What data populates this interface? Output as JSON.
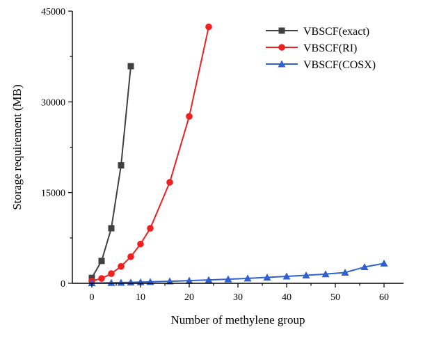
{
  "chart_data": {
    "type": "line",
    "title": "",
    "xlabel": "Number of methylene group",
    "ylabel": "Storage requirement (MB)",
    "xlim": [
      -4,
      64
    ],
    "ylim": [
      0,
      45000
    ],
    "xticks": [
      0,
      10,
      20,
      30,
      40,
      50,
      60
    ],
    "yticks": [
      0,
      15000,
      30000,
      45000
    ],
    "grid": false,
    "legend_position": "top-right",
    "series": [
      {
        "name": "VBSCF(exact)",
        "color": "#404040",
        "marker": "square",
        "x": [
          0,
          2,
          4,
          6,
          8
        ],
        "y": [
          900,
          3700,
          9100,
          19500,
          35900
        ]
      },
      {
        "name": "VBSCF(RI)",
        "color": "#ee2020",
        "marker": "circle",
        "x": [
          0,
          2,
          4,
          6,
          8,
          10,
          12,
          16,
          20,
          24
        ],
        "y": [
          400,
          800,
          1600,
          2800,
          4400,
          6500,
          9100,
          16700,
          27600,
          42400
        ]
      },
      {
        "name": "VBSCF(COSX)",
        "color": "#2f5fd0",
        "marker": "triangle",
        "x": [
          0,
          4,
          6,
          8,
          10,
          12,
          16,
          20,
          24,
          28,
          32,
          36,
          40,
          44,
          48,
          52,
          56,
          60
        ],
        "y": [
          50,
          90,
          120,
          160,
          200,
          240,
          340,
          440,
          560,
          680,
          820,
          980,
          1150,
          1330,
          1530,
          1780,
          2700,
          3300
        ]
      }
    ]
  }
}
